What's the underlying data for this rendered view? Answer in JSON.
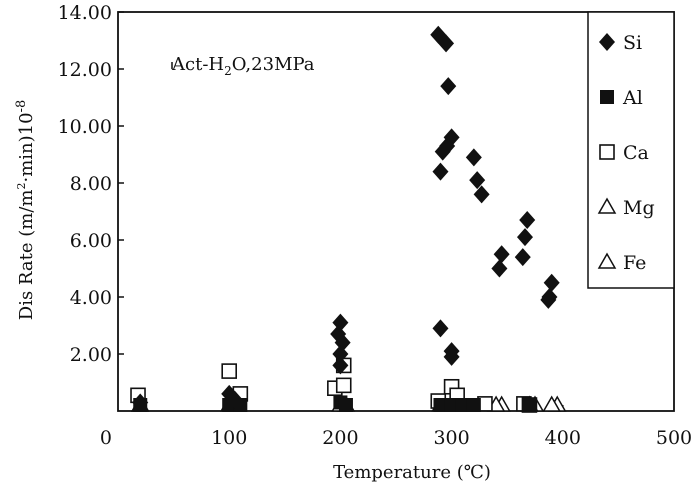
{
  "chart_data": {
    "type": "scatter",
    "title": "",
    "annotation": {
      "prefix": "Act-H",
      "sub": "2",
      "suffix": "O,23MPa"
    },
    "xlabel": {
      "main": "Temperature (",
      "unit": "℃",
      "close": ")"
    },
    "ylabel": {
      "pre": "Dis Rate (m/m",
      "sup1": "2",
      "mid": "·min)10",
      "sup2": "-8"
    },
    "xlim": [
      0,
      500
    ],
    "ylim": [
      0,
      14
    ],
    "xticks": [
      {
        "v": 0,
        "label": "0"
      },
      {
        "v": 100,
        "label": "100"
      },
      {
        "v": 200,
        "label": "200"
      },
      {
        "v": 300,
        "label": "300"
      },
      {
        "v": 400,
        "label": "400"
      },
      {
        "v": 500,
        "label": "500"
      }
    ],
    "yticks": [
      {
        "v": 2,
        "label": "2.00"
      },
      {
        "v": 4,
        "label": "4.00"
      },
      {
        "v": 6,
        "label": "6.00"
      },
      {
        "v": 8,
        "label": "8.00"
      },
      {
        "v": 10,
        "label": "10.00"
      },
      {
        "v": 12,
        "label": "12.00"
      },
      {
        "v": 14,
        "label": "14.00"
      }
    ],
    "legend_position": "top-right",
    "series": [
      {
        "name": "Si",
        "marker": "diamond-filled",
        "points": [
          [
            20,
            0.3
          ],
          [
            100,
            0.6
          ],
          [
            105,
            0.4
          ],
          [
            200,
            3.1
          ],
          [
            198,
            2.7
          ],
          [
            202,
            2.4
          ],
          [
            200,
            2.0
          ],
          [
            200,
            1.6
          ],
          [
            288,
            13.2
          ],
          [
            295,
            12.9
          ],
          [
            297,
            11.4
          ],
          [
            300,
            9.6
          ],
          [
            296,
            9.3
          ],
          [
            292,
            9.1
          ],
          [
            290,
            8.4
          ],
          [
            290,
            2.9
          ],
          [
            300,
            2.1
          ],
          [
            300,
            1.9
          ],
          [
            320,
            8.9
          ],
          [
            323,
            8.1
          ],
          [
            327,
            7.6
          ],
          [
            345,
            5.5
          ],
          [
            343,
            5.0
          ],
          [
            368,
            6.7
          ],
          [
            366,
            6.1
          ],
          [
            364,
            5.4
          ],
          [
            390,
            4.5
          ],
          [
            388,
            4.0
          ],
          [
            387,
            3.9
          ]
        ]
      },
      {
        "name": "Al",
        "marker": "square-filled",
        "points": [
          [
            20,
            0.05
          ],
          [
            100,
            0.2
          ],
          [
            110,
            0.05
          ],
          [
            200,
            0.3
          ],
          [
            205,
            0.05
          ],
          [
            290,
            0.1
          ],
          [
            300,
            0.2
          ],
          [
            310,
            0.05
          ],
          [
            320,
            0.1
          ],
          [
            370,
            0.1
          ]
        ]
      },
      {
        "name": "Ca",
        "marker": "square-open",
        "points": [
          [
            18,
            0.55
          ],
          [
            100,
            1.4
          ],
          [
            110,
            0.6
          ],
          [
            195,
            0.8
          ],
          [
            203,
            1.6
          ],
          [
            203,
            0.9
          ],
          [
            288,
            0.35
          ],
          [
            300,
            0.85
          ],
          [
            305,
            0.55
          ],
          [
            330,
            0.25
          ],
          [
            365,
            0.25
          ],
          [
            370,
            0.2
          ]
        ]
      },
      {
        "name": "Mg",
        "marker": "triangle-open",
        "points": [
          [
            20,
            0.05
          ],
          [
            100,
            0.1
          ],
          [
            200,
            0.1
          ],
          [
            290,
            0.15
          ],
          [
            340,
            0.1
          ],
          [
            370,
            0.1
          ],
          [
            390,
            0.1
          ]
        ]
      },
      {
        "name": "Fe",
        "marker": "triangle-open",
        "points": [
          [
            20,
            0.0
          ],
          [
            105,
            0.05
          ],
          [
            205,
            0.05
          ],
          [
            300,
            0.05
          ],
          [
            345,
            0.05
          ],
          [
            375,
            0.05
          ],
          [
            395,
            0.05
          ]
        ]
      }
    ]
  }
}
